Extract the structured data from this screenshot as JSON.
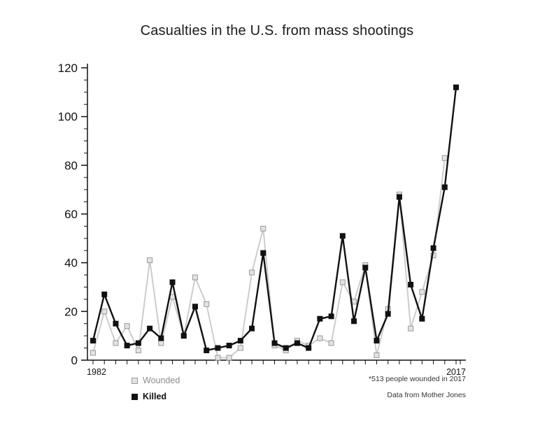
{
  "title": "Casualties in the U.S. from mass shootings",
  "legend": {
    "wounded": "Wounded",
    "killed": "Killed"
  },
  "notes": {
    "wounded_2017": "*513 people wounded in 2017",
    "source": "Data from Mother Jones"
  },
  "axis": {
    "x_first_label": "1982",
    "x_last_label": "2017"
  },
  "colors": {
    "axis": "#111111",
    "killed": "#111111",
    "wounded_line": "#cccccc",
    "wounded_fill": "#e3e3e3",
    "wounded_stroke": "#999999"
  },
  "chart_data": {
    "type": "line",
    "title": "Casualties in the U.S. from mass shootings",
    "xlabel": "",
    "ylabel": "",
    "ylim": [
      0,
      120
    ],
    "yticks": [
      0,
      20,
      40,
      60,
      80,
      100,
      120
    ],
    "x_tick_labels_shown": [
      "1982",
      "2017"
    ],
    "legend_position": "bottom-left",
    "grid": false,
    "x": [
      1982,
      1984,
      1986,
      1987,
      1988,
      1989,
      1990,
      1991,
      1992,
      1993,
      1994,
      1995,
      1996,
      1997,
      1998,
      1999,
      2000,
      2001,
      2003,
      2004,
      2005,
      2006,
      2007,
      2008,
      2009,
      2010,
      2011,
      2012,
      2013,
      2014,
      2015,
      2016,
      2017
    ],
    "series": [
      {
        "name": "Wounded",
        "values": [
          3,
          20,
          7,
          14,
          4,
          41,
          7,
          26,
          10,
          34,
          23,
          1,
          1,
          5,
          36,
          54,
          6,
          4,
          8,
          6,
          9,
          7,
          32,
          24,
          39,
          2,
          21,
          68,
          13,
          28,
          43,
          83,
          513
        ]
      },
      {
        "name": "Killed",
        "values": [
          8,
          27,
          15,
          6,
          7,
          13,
          9,
          32,
          10,
          22,
          4,
          5,
          6,
          8,
          13,
          44,
          7,
          5,
          7,
          5,
          17,
          18,
          51,
          16,
          38,
          8,
          19,
          67,
          31,
          17,
          46,
          71,
          112
        ]
      }
    ],
    "annotation": "Wounded value for 2017 (513) exceeds the y-axis range and is not plotted; noted in footnote"
  }
}
